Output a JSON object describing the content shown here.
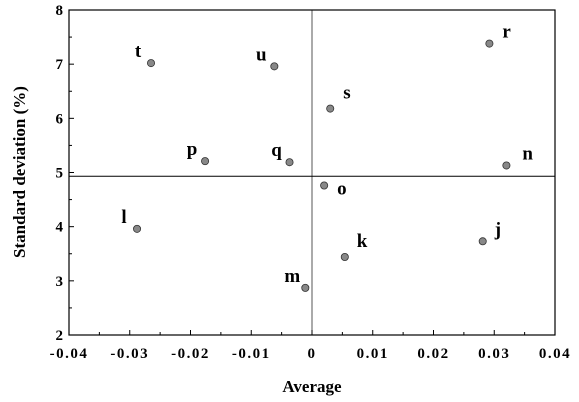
{
  "chart_data": {
    "type": "scatter",
    "title": "",
    "xlabel": "Average",
    "ylabel": "Standard deviation (%)",
    "xlim": [
      -0.04,
      0.04
    ],
    "ylim": [
      2,
      8
    ],
    "xticks": [
      "-0.04",
      "-0.03",
      "-0.02",
      "-0.01",
      "0",
      "0.01",
      "0.02",
      "0.03",
      "0.04"
    ],
    "yticks": [
      "2",
      "3",
      "4",
      "5",
      "6",
      "7",
      "8"
    ],
    "reference_lines": {
      "x": 0,
      "y": 4.93
    },
    "grid": false,
    "marker_color": "#888888",
    "points": [
      {
        "label": "t",
        "x": -0.0265,
        "y": 7.02
      },
      {
        "label": "u",
        "x": -0.0062,
        "y": 6.96
      },
      {
        "label": "r",
        "x": 0.0292,
        "y": 7.38
      },
      {
        "label": "s",
        "x": 0.003,
        "y": 6.18
      },
      {
        "label": "p",
        "x": -0.0176,
        "y": 5.21
      },
      {
        "label": "q",
        "x": -0.0037,
        "y": 5.19
      },
      {
        "label": "n",
        "x": 0.032,
        "y": 5.13
      },
      {
        "label": "o",
        "x": 0.002,
        "y": 4.76
      },
      {
        "label": "l",
        "x": -0.0288,
        "y": 3.96
      },
      {
        "label": "j",
        "x": 0.0281,
        "y": 3.73
      },
      {
        "label": "k",
        "x": 0.0054,
        "y": 3.44
      },
      {
        "label": "m",
        "x": -0.0011,
        "y": 2.87
      }
    ]
  }
}
